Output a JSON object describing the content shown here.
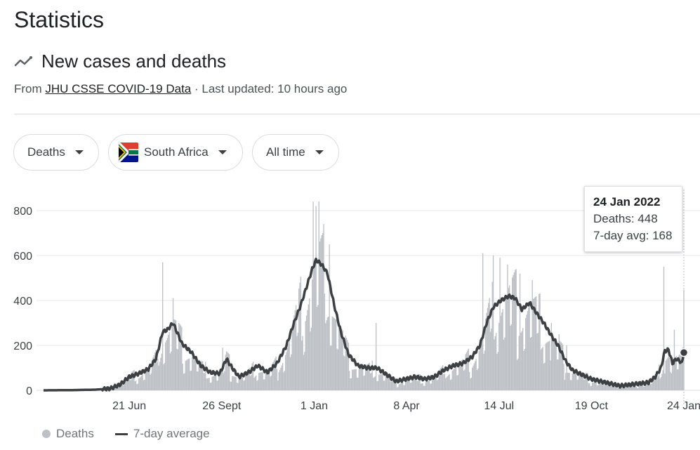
{
  "page": {
    "title": "Statistics"
  },
  "section": {
    "title": "New cases and deaths",
    "source_prefix": "From",
    "source_link": "JHU CSSE COVID-19 Data",
    "updated": "· Last updated: 10 hours ago"
  },
  "filters": {
    "metric": "Deaths",
    "country": "South Africa",
    "range": "All time"
  },
  "tooltip": {
    "date": "24 Jan 2022",
    "deaths_line": "Deaths: 448",
    "avg_line": "7-day avg: 168"
  },
  "legend": {
    "deaths": "Deaths",
    "avg": "7-day average"
  },
  "colors": {
    "bars": "#bdc1c6",
    "avg_line": "#3c4043",
    "grid": "#e8eaed"
  },
  "chart_data": {
    "type": "bar",
    "xlabel": "",
    "ylabel": "",
    "ylim": [
      0,
      800
    ],
    "y_ticks": [
      0,
      200,
      400,
      600,
      800
    ],
    "x_ticks": [
      "21 Jun",
      "26 Sept",
      "1 Jan",
      "8 Apr",
      "14 Jul",
      "19 Oct",
      "24 Jan"
    ],
    "x_tick_days": [
      90,
      187,
      284,
      381,
      478,
      575,
      672
    ],
    "total_days": 673,
    "series": [
      {
        "name": "Deaths",
        "kind": "bar"
      },
      {
        "name": "7-day average",
        "kind": "line"
      }
    ],
    "avg_keypoints": [
      [
        0,
        0
      ],
      [
        30,
        1
      ],
      [
        55,
        3
      ],
      [
        70,
        8
      ],
      [
        80,
        25
      ],
      [
        90,
        60
      ],
      [
        100,
        75
      ],
      [
        110,
        95
      ],
      [
        118,
        140
      ],
      [
        125,
        260
      ],
      [
        130,
        270
      ],
      [
        136,
        300
      ],
      [
        145,
        210
      ],
      [
        155,
        170
      ],
      [
        165,
        110
      ],
      [
        175,
        80
      ],
      [
        185,
        75
      ],
      [
        192,
        140
      ],
      [
        198,
        100
      ],
      [
        205,
        60
      ],
      [
        215,
        80
      ],
      [
        225,
        110
      ],
      [
        235,
        80
      ],
      [
        245,
        120
      ],
      [
        255,
        200
      ],
      [
        262,
        290
      ],
      [
        270,
        380
      ],
      [
        276,
        460
      ],
      [
        282,
        540
      ],
      [
        286,
        580
      ],
      [
        292,
        560
      ],
      [
        298,
        520
      ],
      [
        305,
        380
      ],
      [
        312,
        260
      ],
      [
        320,
        160
      ],
      [
        330,
        110
      ],
      [
        340,
        100
      ],
      [
        350,
        100
      ],
      [
        360,
        70
      ],
      [
        370,
        40
      ],
      [
        380,
        50
      ],
      [
        390,
        60
      ],
      [
        400,
        50
      ],
      [
        410,
        60
      ],
      [
        420,
        90
      ],
      [
        430,
        110
      ],
      [
        440,
        120
      ],
      [
        450,
        150
      ],
      [
        458,
        200
      ],
      [
        465,
        300
      ],
      [
        472,
        370
      ],
      [
        480,
        400
      ],
      [
        488,
        420
      ],
      [
        495,
        410
      ],
      [
        502,
        360
      ],
      [
        510,
        390
      ],
      [
        518,
        340
      ],
      [
        525,
        300
      ],
      [
        532,
        250
      ],
      [
        540,
        200
      ],
      [
        548,
        130
      ],
      [
        555,
        90
      ],
      [
        565,
        70
      ],
      [
        575,
        50
      ],
      [
        585,
        40
      ],
      [
        595,
        30
      ],
      [
        605,
        20
      ],
      [
        615,
        25
      ],
      [
        625,
        30
      ],
      [
        635,
        35
      ],
      [
        642,
        60
      ],
      [
        648,
        100
      ],
      [
        652,
        175
      ],
      [
        656,
        180
      ],
      [
        660,
        120
      ],
      [
        664,
        140
      ],
      [
        668,
        130
      ],
      [
        670,
        120
      ],
      [
        672,
        168
      ]
    ],
    "spikes": [
      [
        125,
        570
      ],
      [
        136,
        410
      ],
      [
        188,
        190
      ],
      [
        283,
        840
      ],
      [
        286,
        820
      ],
      [
        289,
        840
      ],
      [
        294,
        740
      ],
      [
        300,
        650
      ],
      [
        349,
        300
      ],
      [
        461,
        610
      ],
      [
        472,
        600
      ],
      [
        479,
        590
      ],
      [
        487,
        560
      ],
      [
        500,
        520
      ],
      [
        513,
        490
      ],
      [
        533,
        300
      ],
      [
        541,
        250
      ],
      [
        549,
        200
      ],
      [
        651,
        550
      ],
      [
        662,
        270
      ],
      [
        672,
        448
      ]
    ],
    "highlight": {
      "x_label": "24 Jan 2022",
      "deaths": 448,
      "avg": 168
    }
  }
}
